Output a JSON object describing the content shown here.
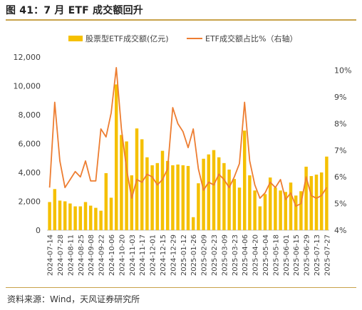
{
  "figure": {
    "title": "图 41：7 月 ETF 成交额回升",
    "source": "资料来源：Wind，天风证券研究所"
  },
  "colors": {
    "bar": "#F5C000",
    "line": "#ED7D31",
    "accent_rule": "#C8A24A",
    "axis_text": "#404040"
  },
  "chart_data": {
    "type": "bar",
    "combo": "bar+line",
    "x": [
      "2024-07-14",
      "2024-07-21",
      "2024-07-28",
      "2024-08-04",
      "2024-08-11",
      "2024-08-18",
      "2024-08-25",
      "2024-09-01",
      "2024-09-08",
      "2024-09-15",
      "2024-09-22",
      "2024-09-29",
      "2024-10-06",
      "2024-10-13",
      "2024-10-20",
      "2024-10-27",
      "2024-11-03",
      "2024-11-10",
      "2024-11-17",
      "2024-11-24",
      "2024-12-01",
      "2024-12-08",
      "2024-12-15",
      "2024-12-22",
      "2024-12-29",
      "2025-01-05",
      "2025-01-12",
      "2025-01-19",
      "2025-01-26",
      "2025-02-02",
      "2025-02-09",
      "2025-02-16",
      "2025-02-23",
      "2025-03-02",
      "2025-03-09",
      "2025-03-16",
      "2025-03-23",
      "2025-03-30",
      "2025-04-06",
      "2025-04-13",
      "2025-04-20",
      "2025-04-27",
      "2025-05-04",
      "2025-05-11",
      "2025-05-18",
      "2025-05-25",
      "2025-06-01",
      "2025-06-08",
      "2025-06-15",
      "2025-06-22",
      "2025-06-29",
      "2025-07-06",
      "2025-07-13",
      "2025-07-20",
      "2025-07-27"
    ],
    "tick_labels": [
      "2024-07-14",
      "2024-07-28",
      "2024-08-11",
      "2024-08-25",
      "2024-09-08",
      "2024-09-22",
      "2024-10-06",
      "2024-10-20",
      "2024-11-03",
      "2024-11-17",
      "2024-12-01",
      "2024-12-15",
      "2024-12-29",
      "2025-01-12",
      "2025-01-26",
      "2025-02-09",
      "2025-02-23",
      "2025-03-09",
      "2025-03-23",
      "2025-04-06",
      "2025-04-20",
      "2025-05-04",
      "2025-05-18",
      "2025-06-01",
      "2025-06-15",
      "2025-06-29",
      "2025-07-13",
      "2025-07-27"
    ],
    "series": [
      {
        "name": "股票型ETF成交额(亿元)",
        "type": "bar",
        "axis": "left",
        "values": [
          1950,
          2850,
          2050,
          2000,
          1850,
          1650,
          1650,
          1950,
          1700,
          1550,
          1350,
          3950,
          2250,
          10100,
          6600,
          6150,
          3800,
          7050,
          6300,
          5050,
          4500,
          4650,
          5500,
          4800,
          4500,
          4550,
          4500,
          4450,
          900,
          3250,
          4950,
          5250,
          5550,
          5050,
          4650,
          4200,
          3550,
          2950,
          6900,
          3800,
          2750,
          1650,
          2500,
          3650,
          2950,
          2750,
          2650,
          3300,
          2400,
          2700,
          4400,
          3750,
          3850,
          4000,
          5100
        ]
      },
      {
        "name": "ETF成交额占比%（右轴）",
        "type": "line",
        "axis": "right",
        "values": [
          5.6,
          8.8,
          6.6,
          5.6,
          5.9,
          6.2,
          6.0,
          6.6,
          5.85,
          5.85,
          7.8,
          7.5,
          8.4,
          10.1,
          7.8,
          6.3,
          5.2,
          5.9,
          5.8,
          6.1,
          6.0,
          5.7,
          5.9,
          6.3,
          8.6,
          8.0,
          7.7,
          7.1,
          7.8,
          6.3,
          5.5,
          5.8,
          5.7,
          6.1,
          5.9,
          5.6,
          6.0,
          6.5,
          8.8,
          6.6,
          5.7,
          5.2,
          5.4,
          5.8,
          5.6,
          5.9,
          5.15,
          5.4,
          4.9,
          5.0,
          6.0,
          5.3,
          5.2,
          5.3,
          5.6
        ]
      }
    ],
    "y_left": {
      "ylim": [
        0,
        12000
      ],
      "ticks": [
        "0",
        "2,000",
        "4,000",
        "6,000",
        "8,000",
        "10,000",
        "12,000"
      ]
    },
    "y_right": {
      "ylim": [
        4,
        10.5
      ],
      "ticks": [
        "4%",
        "5%",
        "6%",
        "7%",
        "8%",
        "9%",
        "10%"
      ]
    },
    "legend": "top",
    "grid": false
  }
}
